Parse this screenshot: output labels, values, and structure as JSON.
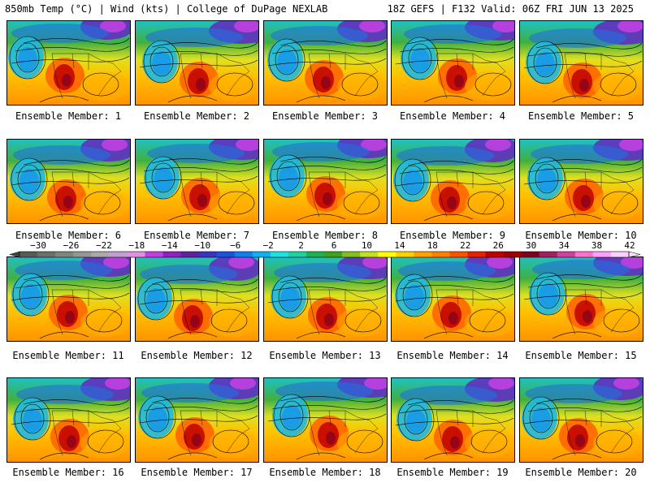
{
  "header": {
    "left": "850mb Temp (°C) | Wind (kts) | College of DuPage NEXLAB",
    "right": "18Z GEFS | F132 Valid: 06Z FRI JUN 13 2025"
  },
  "panels": [
    {
      "label": "Ensemble Member: 1"
    },
    {
      "label": "Ensemble Member: 2"
    },
    {
      "label": "Ensemble Member: 3"
    },
    {
      "label": "Ensemble Member: 4"
    },
    {
      "label": "Ensemble Member: 5"
    },
    {
      "label": "Ensemble Member: 6"
    },
    {
      "label": "Ensemble Member: 7"
    },
    {
      "label": "Ensemble Member: 8"
    },
    {
      "label": "Ensemble Member: 9"
    },
    {
      "label": "Ensemble Member: 10"
    },
    {
      "label": "Ensemble Member: 11"
    },
    {
      "label": "Ensemble Member: 12"
    },
    {
      "label": "Ensemble Member: 13"
    },
    {
      "label": "Ensemble Member: 14"
    },
    {
      "label": "Ensemble Member: 15"
    },
    {
      "label": "Ensemble Member: 16"
    },
    {
      "label": "Ensemble Member: 17"
    },
    {
      "label": "Ensemble Member: 18"
    },
    {
      "label": "Ensemble Member: 19"
    },
    {
      "label": "Ensemble Member: 20"
    }
  ],
  "colorbar": {
    "tick_labels": [
      "−30",
      "−26",
      "−22",
      "−18",
      "−14",
      "−10",
      "−6",
      "−2",
      "2",
      "6",
      "10",
      "14",
      "18",
      "22",
      "26",
      "30",
      "34",
      "38",
      "42"
    ],
    "colors": [
      "#5a5a5a",
      "#6e6e6e",
      "#828282",
      "#969696",
      "#aaaaaa",
      "#c0a0d0",
      "#e090e0",
      "#c040e0",
      "#9020c0",
      "#6020a0",
      "#4030c0",
      "#2050e0",
      "#1080f0",
      "#10b0f0",
      "#20e0e0",
      "#20d0a0",
      "#20b050",
      "#40a020",
      "#80c020",
      "#c0e020",
      "#ffff00",
      "#ffd000",
      "#ffa000",
      "#ff8000",
      "#ff5000",
      "#e82000",
      "#c00000",
      "#a00000",
      "#800020",
      "#a02060",
      "#d040a0",
      "#ff70d0",
      "#ffa0ff",
      "#ffd0ff"
    ]
  }
}
